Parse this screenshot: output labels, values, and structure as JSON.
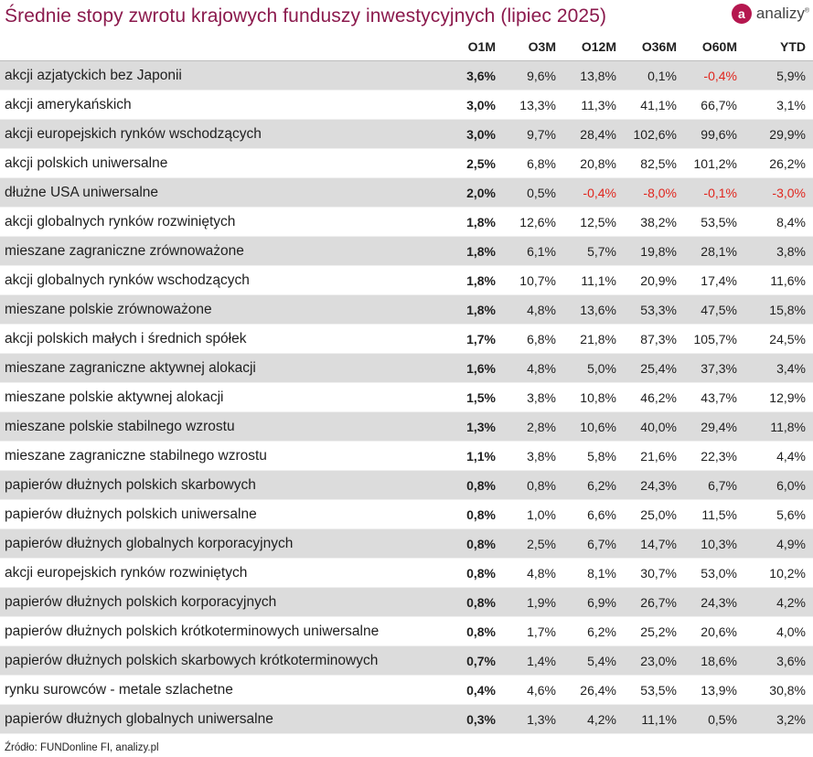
{
  "title": "Średnie stopy zwrotu krajowych funduszy inwestycyjnych (lipiec 2025)",
  "brand": {
    "name": "analizy",
    "mark": "a",
    "reg": "®"
  },
  "source": "Źródło: FUNDonline FI, analizy.pl",
  "chart_data": {
    "type": "table",
    "title": "Średnie stopy zwrotu krajowych funduszy inwestycyjnych (lipiec 2025)",
    "columns": [
      "O1M",
      "O3M",
      "O12M",
      "O36M",
      "O60M",
      "YTD"
    ],
    "rows": [
      {
        "name": "akcji azjatyckich bez Japonii",
        "values": [
          "3,6%",
          "9,6%",
          "13,8%",
          "0,1%",
          "-0,4%",
          "5,9%"
        ]
      },
      {
        "name": "akcji amerykańskich",
        "values": [
          "3,0%",
          "13,3%",
          "11,3%",
          "41,1%",
          "66,7%",
          "3,1%"
        ]
      },
      {
        "name": "akcji europejskich rynków wschodzących",
        "values": [
          "3,0%",
          "9,7%",
          "28,4%",
          "102,6%",
          "99,6%",
          "29,9%"
        ]
      },
      {
        "name": "akcji polskich uniwersalne",
        "values": [
          "2,5%",
          "6,8%",
          "20,8%",
          "82,5%",
          "101,2%",
          "26,2%"
        ]
      },
      {
        "name": "dłużne USA uniwersalne",
        "values": [
          "2,0%",
          "0,5%",
          "-0,4%",
          "-8,0%",
          "-0,1%",
          "-3,0%"
        ]
      },
      {
        "name": "akcji globalnych rynków rozwiniętych",
        "values": [
          "1,8%",
          "12,6%",
          "12,5%",
          "38,2%",
          "53,5%",
          "8,4%"
        ]
      },
      {
        "name": "mieszane zagraniczne zrównoważone",
        "values": [
          "1,8%",
          "6,1%",
          "5,7%",
          "19,8%",
          "28,1%",
          "3,8%"
        ]
      },
      {
        "name": "akcji globalnych rynków wschodzących",
        "values": [
          "1,8%",
          "10,7%",
          "11,1%",
          "20,9%",
          "17,4%",
          "11,6%"
        ]
      },
      {
        "name": "mieszane polskie zrównoważone",
        "values": [
          "1,8%",
          "4,8%",
          "13,6%",
          "53,3%",
          "47,5%",
          "15,8%"
        ]
      },
      {
        "name": "akcji polskich małych i średnich spółek",
        "values": [
          "1,7%",
          "6,8%",
          "21,8%",
          "87,3%",
          "105,7%",
          "24,5%"
        ]
      },
      {
        "name": "mieszane zagraniczne aktywnej alokacji",
        "values": [
          "1,6%",
          "4,8%",
          "5,0%",
          "25,4%",
          "37,3%",
          "3,4%"
        ]
      },
      {
        "name": "mieszane polskie aktywnej alokacji",
        "values": [
          "1,5%",
          "3,8%",
          "10,8%",
          "46,2%",
          "43,7%",
          "12,9%"
        ]
      },
      {
        "name": "mieszane polskie stabilnego wzrostu",
        "values": [
          "1,3%",
          "2,8%",
          "10,6%",
          "40,0%",
          "29,4%",
          "11,8%"
        ]
      },
      {
        "name": "mieszane zagraniczne stabilnego wzrostu",
        "values": [
          "1,1%",
          "3,8%",
          "5,8%",
          "21,6%",
          "22,3%",
          "4,4%"
        ]
      },
      {
        "name": "papierów dłużnych polskich skarbowych",
        "values": [
          "0,8%",
          "0,8%",
          "6,2%",
          "24,3%",
          "6,7%",
          "6,0%"
        ]
      },
      {
        "name": "papierów dłużnych polskich uniwersalne",
        "values": [
          "0,8%",
          "1,0%",
          "6,6%",
          "25,0%",
          "11,5%",
          "5,6%"
        ]
      },
      {
        "name": "papierów dłużnych globalnych korporacyjnych",
        "values": [
          "0,8%",
          "2,5%",
          "6,7%",
          "14,7%",
          "10,3%",
          "4,9%"
        ]
      },
      {
        "name": "akcji europejskich rynków rozwiniętych",
        "values": [
          "0,8%",
          "4,8%",
          "8,1%",
          "30,7%",
          "53,0%",
          "10,2%"
        ]
      },
      {
        "name": "papierów dłużnych polskich korporacyjnych",
        "values": [
          "0,8%",
          "1,9%",
          "6,9%",
          "26,7%",
          "24,3%",
          "4,2%"
        ]
      },
      {
        "name": "papierów dłużnych polskich krótkoterminowych uniwersalne",
        "values": [
          "0,8%",
          "1,7%",
          "6,2%",
          "25,2%",
          "20,6%",
          "4,0%"
        ]
      },
      {
        "name": "papierów dłużnych polskich skarbowych krótkoterminowych",
        "values": [
          "0,7%",
          "1,4%",
          "5,4%",
          "23,0%",
          "18,6%",
          "3,6%"
        ]
      },
      {
        "name": "rynku surowców - metale szlachetne",
        "values": [
          "0,4%",
          "4,6%",
          "26,4%",
          "53,5%",
          "13,9%",
          "30,8%"
        ]
      },
      {
        "name": "papierów dłużnych globalnych uniwersalne",
        "values": [
          "0,3%",
          "1,3%",
          "4,2%",
          "11,1%",
          "0,5%",
          "3,2%"
        ]
      }
    ],
    "colors": {
      "title": "#8b1a4d",
      "negative": "#e0261e",
      "stripe": "#dcdcdc",
      "brand": "#b5174f"
    }
  }
}
